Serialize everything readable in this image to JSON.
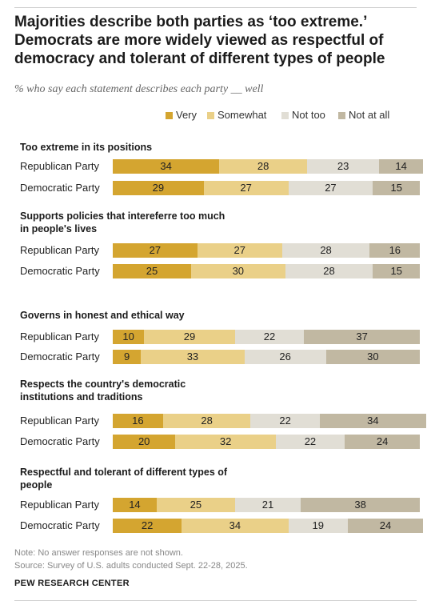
{
  "header": {
    "title": "Majorities describe both parties as ‘too extreme.’ Democrats are more widely viewed as respectful of democracy and tolerant of different types of people",
    "subtitle": "% who say each statement describes each party __ well"
  },
  "colors": {
    "very": "#d4a530",
    "somewhat": "#ead088",
    "not_too": "#e1ded5",
    "not_at_all": "#c1b8a2"
  },
  "chart_data": {
    "type": "bar",
    "orientation": "horizontal",
    "stacked": true,
    "legend": [
      "Very",
      "Somewhat",
      "Not too",
      "Not at all"
    ],
    "legend_position": "top-right",
    "panels": [
      {
        "title": "Too extreme in its positions",
        "rows": [
          {
            "label": "Republican Party",
            "values": [
              34,
              28,
              23,
              14
            ]
          },
          {
            "label": "Democratic Party",
            "values": [
              29,
              27,
              27,
              15
            ]
          }
        ]
      },
      {
        "title": "Supports policies that intereferre too much in people's lives",
        "rows": [
          {
            "label": "Republican Party",
            "values": [
              27,
              27,
              28,
              16
            ]
          },
          {
            "label": "Democratic Party",
            "values": [
              25,
              30,
              28,
              15
            ]
          }
        ]
      },
      {
        "title": "Governs in honest and ethical way",
        "rows": [
          {
            "label": "Republican Party",
            "values": [
              10,
              29,
              22,
              37
            ]
          },
          {
            "label": "Democratic Party",
            "values": [
              9,
              33,
              26,
              30
            ]
          }
        ]
      },
      {
        "title": "Respects the country's democratic institutions and traditions",
        "rows": [
          {
            "label": "Republican Party",
            "values": [
              16,
              28,
              22,
              34
            ]
          },
          {
            "label": "Democratic Party",
            "values": [
              20,
              32,
              22,
              24
            ]
          }
        ]
      },
      {
        "title": "Respectful and tolerant of different types of people",
        "rows": [
          {
            "label": "Republican Party",
            "values": [
              14,
              25,
              21,
              38
            ]
          },
          {
            "label": "Democratic Party",
            "values": [
              22,
              34,
              19,
              24
            ]
          }
        ]
      }
    ]
  },
  "footer": {
    "note": "Note: No answer responses are not shown.",
    "source": "Source: Survey of U.S. adults conducted Sept. 22-28, 2025.",
    "org": "PEW RESEARCH CENTER"
  }
}
